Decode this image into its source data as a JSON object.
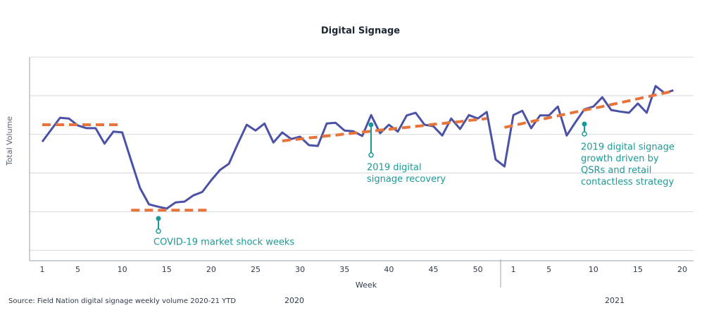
{
  "chart_data": {
    "type": "line",
    "title": "Digital Signage",
    "y_label": "Total  Volume",
    "x_label": "Week",
    "source": "Source: Field Nation digital signage weekly volume 2020-21 YTD",
    "years": [
      "2020",
      "2021"
    ],
    "categories": [
      "1",
      null,
      null,
      null,
      "5",
      null,
      null,
      null,
      null,
      "10",
      null,
      null,
      null,
      null,
      "15",
      null,
      null,
      null,
      null,
      "20",
      null,
      null,
      null,
      null,
      "25",
      null,
      null,
      null,
      null,
      "30",
      null,
      null,
      null,
      null,
      "35",
      null,
      null,
      null,
      null,
      "40",
      null,
      null,
      null,
      null,
      "45",
      null,
      null,
      null,
      null,
      "50",
      null,
      null,
      null,
      "1",
      null,
      null,
      null,
      "5",
      null,
      null,
      null,
      null,
      "10",
      null,
      null,
      null,
      null,
      "15",
      null,
      null,
      null,
      null,
      "20"
    ],
    "series": [
      {
        "color": "#4b52a5",
        "dashed": false,
        "values": [
          2.81,
          3.12,
          3.43,
          3.41,
          3.23,
          3.16,
          3.16,
          2.76,
          3.07,
          3.05,
          2.32,
          1.61,
          1.19,
          1.13,
          1.08,
          1.24,
          1.26,
          1.42,
          1.51,
          1.81,
          2.08,
          2.24,
          2.76,
          3.25,
          3.1,
          3.28,
          2.79,
          3.05,
          2.88,
          2.94,
          2.72,
          2.7,
          3.28,
          3.3,
          3.1,
          3.08,
          2.96,
          3.5,
          3.03,
          3.25,
          3.07,
          3.49,
          3.56,
          3.25,
          3.21,
          2.97,
          3.41,
          3.14,
          3.5,
          3.41,
          3.58,
          2.35,
          2.17,
          3.5,
          3.61,
          3.16,
          3.49,
          3.49,
          3.72,
          2.97,
          3.32,
          3.65,
          3.72,
          3.96,
          3.63,
          3.59,
          3.56,
          3.8,
          3.56,
          4.25,
          4.07,
          4.14,
          null
        ]
      },
      {
        "color": "#e8743b",
        "dashed": true,
        "values": [
          3.25,
          3.25,
          3.25,
          3.25,
          3.25,
          3.25,
          3.25,
          3.25,
          3.25,
          3.25,
          null,
          null,
          null,
          null,
          null,
          null,
          null,
          null,
          null,
          null,
          null,
          null,
          null,
          null,
          null,
          null,
          null,
          2.83,
          2.86,
          2.88,
          2.91,
          2.93,
          2.96,
          2.98,
          3.01,
          3.03,
          3.06,
          3.08,
          3.11,
          3.13,
          3.16,
          3.18,
          3.21,
          3.23,
          3.26,
          3.28,
          3.31,
          3.33,
          3.36,
          3.38,
          3.41,
          null,
          null,
          null,
          null,
          null,
          null,
          null,
          null,
          null,
          null,
          null,
          null,
          null,
          null,
          null,
          null,
          null,
          null,
          null,
          null,
          null,
          null
        ]
      },
      {
        "color": "#e8743b",
        "dashed": true,
        "values": [
          null,
          null,
          null,
          null,
          null,
          null,
          null,
          null,
          null,
          null,
          1.04,
          1.04,
          1.04,
          1.04,
          1.04,
          1.04,
          1.04,
          1.04,
          1.04,
          1.04,
          null,
          null,
          null,
          null,
          null,
          null,
          null,
          null,
          null,
          null,
          null,
          null,
          null,
          null,
          null,
          null,
          null,
          null,
          null,
          null,
          null,
          null,
          null,
          null,
          null,
          null,
          null,
          null,
          null,
          null,
          null,
          null,
          3.18,
          3.23,
          3.28,
          3.33,
          3.38,
          3.43,
          3.48,
          3.53,
          3.58,
          3.63,
          3.67,
          3.72,
          3.77,
          3.82,
          3.87,
          3.92,
          3.97,
          4.02,
          4.07,
          4.12,
          null
        ]
      }
    ],
    "annotations": [
      {
        "lines": [
          "COVID-19 market shock weeks"
        ],
        "color": "#1a9a96"
      },
      {
        "lines": [
          "2019 digital",
          "signage recovery"
        ],
        "color": "#1a9a96"
      },
      {
        "lines": [
          "2019 digital signage",
          "growth driven by",
          "QSRs and retail",
          "contactless strategy"
        ],
        "color": "#1a9a96"
      }
    ],
    "ylim": [
      -0.27,
      5
    ],
    "yticks": [
      0,
      1,
      2,
      3,
      4,
      5
    ],
    "ytick_labels": false,
    "grid": true
  }
}
